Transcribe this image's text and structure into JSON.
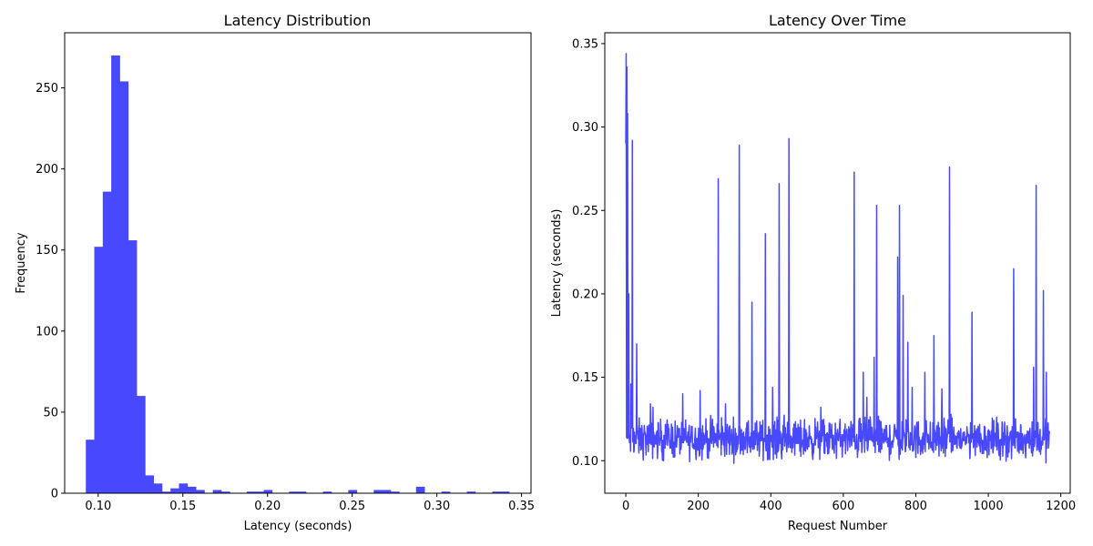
{
  "chart_data": [
    {
      "type": "bar",
      "title": "Latency Distribution",
      "xlabel": "Latency (seconds)",
      "ylabel": "Frequency",
      "xlim": [
        0.0802,
        0.3556
      ],
      "ylim": [
        0,
        284
      ],
      "xticks": [
        "0.10",
        "0.15",
        "0.20",
        "0.25",
        "0.30",
        "0.35"
      ],
      "yticks": [
        "0",
        "50",
        "100",
        "150",
        "200",
        "250"
      ],
      "grid": false,
      "color": "#4848FF",
      "bin_width": 0.005,
      "bins": [
        {
          "x0": 0.0927,
          "count": 33
        },
        {
          "x0": 0.0977,
          "count": 152
        },
        {
          "x0": 0.1027,
          "count": 186
        },
        {
          "x0": 0.1077,
          "count": 270
        },
        {
          "x0": 0.1127,
          "count": 254
        },
        {
          "x0": 0.1177,
          "count": 156
        },
        {
          "x0": 0.1227,
          "count": 60
        },
        {
          "x0": 0.1277,
          "count": 11
        },
        {
          "x0": 0.1327,
          "count": 6
        },
        {
          "x0": 0.1377,
          "count": 1
        },
        {
          "x0": 0.1427,
          "count": 3
        },
        {
          "x0": 0.1477,
          "count": 6
        },
        {
          "x0": 0.1527,
          "count": 4
        },
        {
          "x0": 0.1577,
          "count": 2
        },
        {
          "x0": 0.1677,
          "count": 2
        },
        {
          "x0": 0.1727,
          "count": 1
        },
        {
          "x0": 0.1877,
          "count": 1
        },
        {
          "x0": 0.1927,
          "count": 1
        },
        {
          "x0": 0.1977,
          "count": 2
        },
        {
          "x0": 0.2127,
          "count": 1
        },
        {
          "x0": 0.2177,
          "count": 1
        },
        {
          "x0": 0.2327,
          "count": 1
        },
        {
          "x0": 0.2477,
          "count": 2
        },
        {
          "x0": 0.2627,
          "count": 2
        },
        {
          "x0": 0.2677,
          "count": 2
        },
        {
          "x0": 0.2727,
          "count": 1
        },
        {
          "x0": 0.2877,
          "count": 4
        },
        {
          "x0": 0.3027,
          "count": 1
        },
        {
          "x0": 0.3177,
          "count": 1
        },
        {
          "x0": 0.3327,
          "count": 1
        },
        {
          "x0": 0.3377,
          "count": 1
        }
      ]
    },
    {
      "type": "line",
      "title": "Latency Over Time",
      "xlabel": "Request Number",
      "ylabel": "Latency (seconds)",
      "xlim": [
        -58,
        1226
      ],
      "ylim": [
        0.0805,
        0.3565
      ],
      "xticks": [
        "0",
        "200",
        "400",
        "600",
        "800",
        "1000",
        "1200"
      ],
      "yticks": [
        "0.10",
        "0.15",
        "0.20",
        "0.25",
        "0.30",
        "0.35"
      ],
      "grid": false,
      "color": "#4848FF",
      "n_points": 1170,
      "baseline_mean": 0.113,
      "spikes": [
        {
          "x": 0,
          "y": 0.29
        },
        {
          "x": 1,
          "y": 0.344
        },
        {
          "x": 3,
          "y": 0.336
        },
        {
          "x": 5,
          "y": 0.308
        },
        {
          "x": 8,
          "y": 0.2
        },
        {
          "x": 14,
          "y": 0.146
        },
        {
          "x": 18,
          "y": 0.292
        },
        {
          "x": 30,
          "y": 0.17
        },
        {
          "x": 68,
          "y": 0.134
        },
        {
          "x": 75,
          "y": 0.132
        },
        {
          "x": 205,
          "y": 0.142
        },
        {
          "x": 255,
          "y": 0.269
        },
        {
          "x": 275,
          "y": 0.134
        },
        {
          "x": 313,
          "y": 0.289
        },
        {
          "x": 348,
          "y": 0.195
        },
        {
          "x": 385,
          "y": 0.236
        },
        {
          "x": 405,
          "y": 0.144
        },
        {
          "x": 423,
          "y": 0.266
        },
        {
          "x": 450,
          "y": 0.293
        },
        {
          "x": 538,
          "y": 0.132
        },
        {
          "x": 630,
          "y": 0.273
        },
        {
          "x": 655,
          "y": 0.153
        },
        {
          "x": 665,
          "y": 0.138
        },
        {
          "x": 685,
          "y": 0.162
        },
        {
          "x": 692,
          "y": 0.253
        },
        {
          "x": 750,
          "y": 0.222
        },
        {
          "x": 755,
          "y": 0.253
        },
        {
          "x": 765,
          "y": 0.199
        },
        {
          "x": 778,
          "y": 0.171
        },
        {
          "x": 790,
          "y": 0.144
        },
        {
          "x": 825,
          "y": 0.153
        },
        {
          "x": 850,
          "y": 0.175
        },
        {
          "x": 872,
          "y": 0.143
        },
        {
          "x": 893,
          "y": 0.276
        },
        {
          "x": 955,
          "y": 0.189
        },
        {
          "x": 1070,
          "y": 0.215
        },
        {
          "x": 1125,
          "y": 0.156
        },
        {
          "x": 1132,
          "y": 0.265
        },
        {
          "x": 1152,
          "y": 0.202
        },
        {
          "x": 1160,
          "y": 0.153
        }
      ]
    }
  ]
}
